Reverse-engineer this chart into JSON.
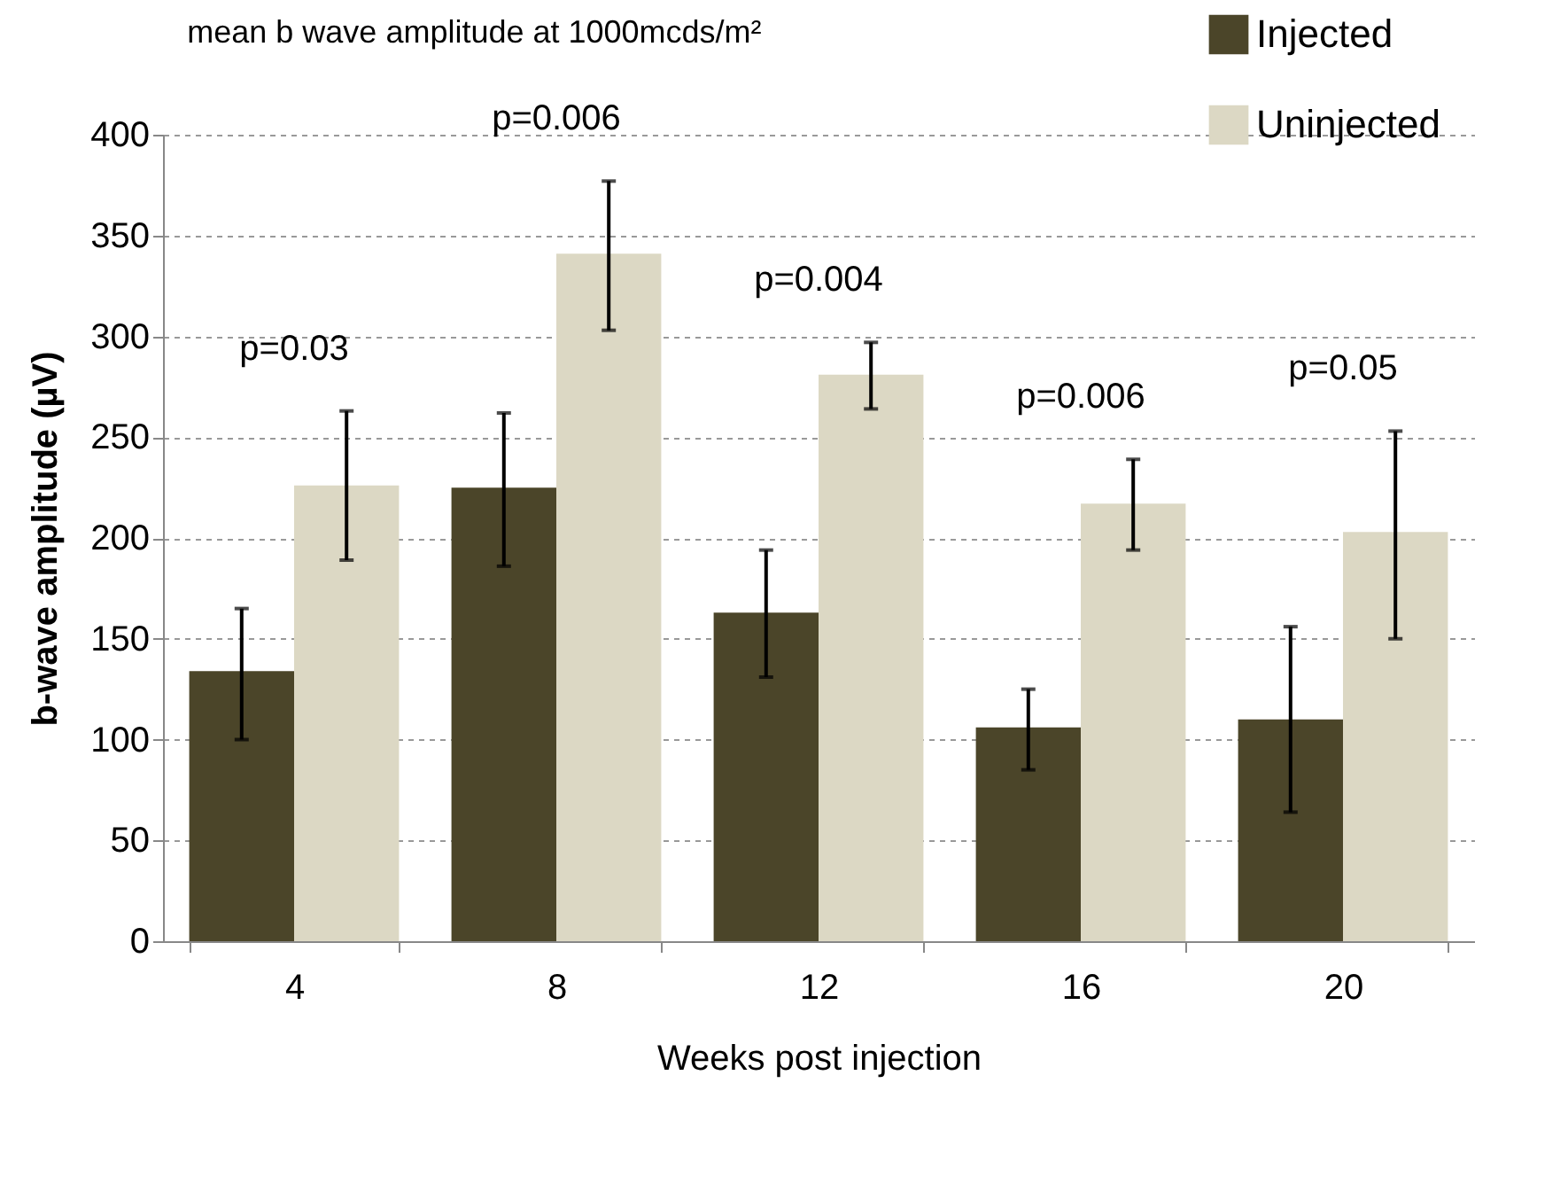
{
  "chart_data": {
    "type": "bar",
    "title": "mean b wave amplitude at 1000mcds/m²",
    "xlabel": "Weeks post injection",
    "ylabel": "b-wave amplitude (µV)",
    "categories": [
      "4",
      "8",
      "12",
      "16",
      "20"
    ],
    "series": [
      {
        "name": "Injected",
        "color": "#4b4529",
        "values": [
          134,
          225,
          163,
          106,
          110
        ],
        "errors": [
          [
            100,
            165
          ],
          [
            186,
            262
          ],
          [
            131,
            194
          ],
          [
            85,
            125
          ],
          [
            64,
            156
          ]
        ]
      },
      {
        "name": "Uninjected",
        "color": "#dcd8c4",
        "values": [
          226,
          341,
          281,
          217,
          203
        ],
        "errors": [
          [
            189,
            263
          ],
          [
            303,
            377
          ],
          [
            264,
            297
          ],
          [
            194,
            239
          ],
          [
            150,
            253
          ]
        ]
      }
    ],
    "ylim": [
      0,
      400
    ],
    "yticks": [
      0,
      50,
      100,
      150,
      200,
      250,
      300,
      350,
      400
    ],
    "grid": "y",
    "legend": "top right",
    "annotations": [
      "p=0.03",
      "p=0.006",
      "p=0.004",
      "p=0.006",
      "p=0.05"
    ]
  }
}
